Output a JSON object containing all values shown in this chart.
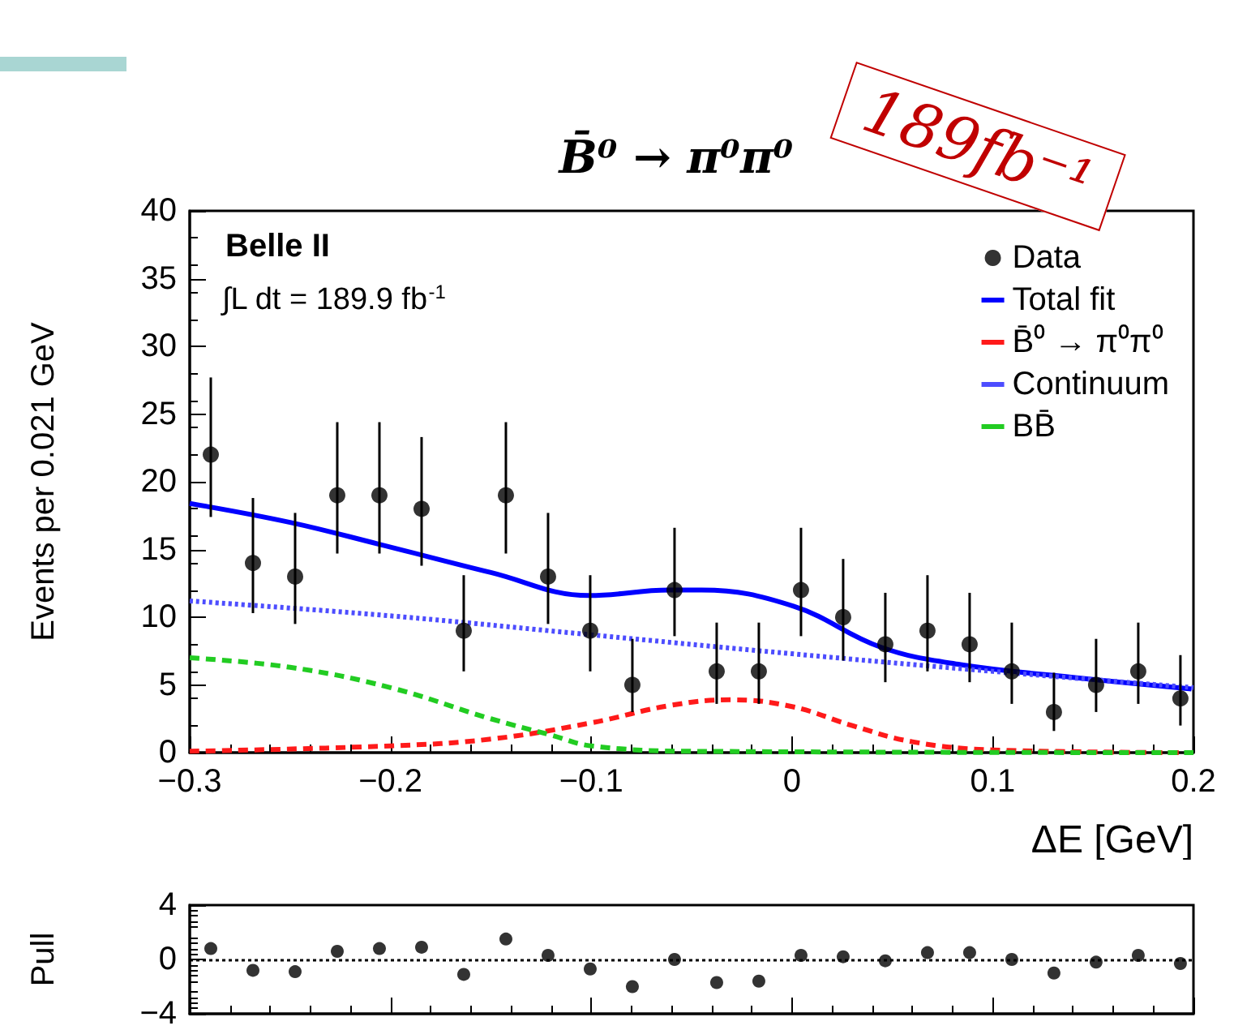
{
  "chart_data": [
    {
      "type": "scatter",
      "title": "B̄⁰ → π⁰π⁰",
      "xlabel": "ΔE [GeV]",
      "ylabel": "Events per 0.021 GeV",
      "annotations": [
        "Belle II",
        "∫L dt = 189.9 fb$^{-1}$",
        "189fb⁻¹"
      ],
      "x": [
        -0.2895,
        -0.2685,
        -0.2475,
        -0.2265,
        -0.2055,
        -0.1845,
        -0.1635,
        -0.1425,
        -0.1215,
        -0.1005,
        -0.0795,
        -0.0585,
        -0.0375,
        -0.0165,
        0.0045,
        0.0255,
        0.0465,
        0.0675,
        0.0885,
        0.1095,
        0.1305,
        0.1515,
        0.1725,
        0.1935
      ],
      "xlim": [
        -0.3,
        0.2
      ],
      "xticks": [
        {
          "value": -0.3,
          "label": "−0.3"
        },
        {
          "value": -0.2,
          "label": "−0.2"
        },
        {
          "value": -0.1,
          "label": "−0.1"
        },
        0,
        0.1,
        0.2
      ],
      "ylim": [
        0,
        40
      ],
      "yticks": [
        0,
        5,
        10,
        15,
        20,
        25,
        30,
        35,
        40
      ],
      "grid": false,
      "legend": "top right",
      "series": [
        {
          "name": "Data",
          "type": "scatter",
          "marker": "circle",
          "color": "#000000",
          "values": [
            22,
            14,
            13,
            19,
            19,
            18,
            9,
            19,
            13,
            9,
            5,
            12,
            6,
            6,
            12,
            10,
            8,
            9,
            8,
            6,
            3,
            5,
            6,
            4
          ],
          "errors": [
            [
              17.4,
              27.7
            ],
            [
              10.3,
              18.8
            ],
            [
              9.5,
              17.7
            ],
            [
              14.7,
              24.4
            ],
            [
              14.7,
              24.4
            ],
            [
              13.8,
              23.3
            ],
            [
              6.0,
              13.1
            ],
            [
              14.7,
              24.4
            ],
            [
              9.5,
              17.7
            ],
            [
              6.0,
              13.1
            ],
            [
              3.0,
              8.4
            ],
            [
              8.6,
              16.6
            ],
            [
              3.6,
              9.6
            ],
            [
              3.6,
              9.6
            ],
            [
              8.6,
              16.6
            ],
            [
              6.8,
              14.3
            ],
            [
              5.2,
              11.8
            ],
            [
              6.0,
              13.1
            ],
            [
              5.2,
              11.8
            ],
            [
              3.6,
              9.6
            ],
            [
              1.6,
              5.9
            ],
            [
              3.0,
              8.4
            ],
            [
              3.6,
              9.6
            ],
            [
              2.0,
              7.2
            ]
          ]
        },
        {
          "name": "Total fit",
          "type": "line",
          "marker": "none",
          "line_style": "solid",
          "color": "#0000ff",
          "x": [
            -0.3,
            -0.25,
            -0.206,
            -0.15,
            -0.101,
            -0.061,
            -0.045,
            0.001,
            0.044,
            0.084,
            0.144,
            0.199
          ],
          "values": [
            18.4,
            17.0,
            15.4,
            13.3,
            11.6,
            12.0,
            12.0,
            10.8,
            7.8,
            6.5,
            5.5,
            4.7
          ]
        },
        {
          "name": "B̄⁰ → π⁰π⁰",
          "type": "line",
          "marker": "none",
          "line_style": "dashed",
          "color": "#ff1a1a",
          "x": [
            -0.3,
            -0.2,
            -0.15,
            -0.1,
            -0.06,
            -0.03,
            0,
            0.03,
            0.06,
            0.1,
            0.2
          ],
          "values": [
            0.1,
            0.5,
            1.0,
            2.2,
            3.5,
            3.9,
            3.4,
            2.0,
            0.8,
            0.2,
            0.0
          ]
        },
        {
          "name": "Continuum",
          "type": "line",
          "marker": "none",
          "line_style": "dotted",
          "color": "#4d4dff",
          "x": [
            -0.3,
            -0.2,
            -0.1,
            0,
            0.1,
            0.2
          ],
          "values": [
            11.2,
            10.1,
            8.7,
            7.3,
            6.0,
            4.8
          ]
        },
        {
          "name": "BB̄",
          "type": "line",
          "marker": "none",
          "line_style": "dashed",
          "color": "#22cc22",
          "x": [
            -0.3,
            -0.25,
            -0.2,
            -0.15,
            -0.12,
            -0.1,
            -0.05,
            0.2
          ],
          "values": [
            7.0,
            6.3,
            4.8,
            2.5,
            1.3,
            0.5,
            0.1,
            0.0
          ]
        }
      ]
    },
    {
      "type": "scatter",
      "ylabel": "Pull",
      "x": [
        -0.2895,
        -0.2685,
        -0.2475,
        -0.2265,
        -0.2055,
        -0.1845,
        -0.1635,
        -0.1425,
        -0.1215,
        -0.1005,
        -0.0795,
        -0.0585,
        -0.0375,
        -0.0165,
        0.0045,
        0.0255,
        0.0465,
        0.0675,
        0.0885,
        0.1095,
        0.1305,
        0.1515,
        0.1725,
        0.1935
      ],
      "xlim": [
        -0.3,
        0.2
      ],
      "xticks": [
        -0.3,
        -0.2,
        -0.1,
        0,
        0.1,
        0.2
      ],
      "ylim": [
        -4,
        4
      ],
      "yticks": [
        {
          "value": -4,
          "label": "−4"
        },
        0,
        4
      ],
      "tick_labels": "y",
      "grid": false,
      "marker": "circle",
      "ref_lines": [
        {
          "axis": "y",
          "value": 0,
          "line_style": "dotted",
          "color": "#000000"
        }
      ],
      "series": [
        {
          "color": "#000000",
          "values": [
            0.8,
            -0.8,
            -0.9,
            0.6,
            0.8,
            0.9,
            -1.1,
            1.5,
            0.3,
            -0.7,
            -2.0,
            0,
            -1.7,
            -1.6,
            0.3,
            0.2,
            -0.1,
            0.5,
            0.5,
            0,
            -1.0,
            -0.2,
            0.3,
            -0.3
          ]
        }
      ]
    }
  ]
}
